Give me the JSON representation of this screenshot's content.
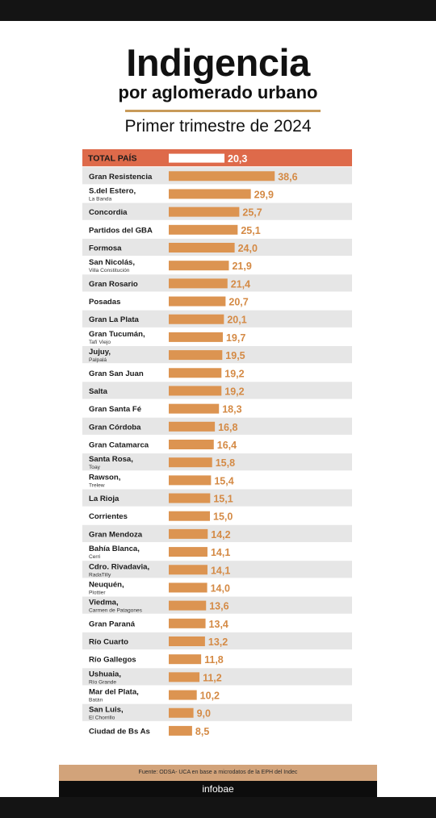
{
  "header": {
    "title": "Indigencia",
    "subtitle": "por aglomerado urbano",
    "period": "Primer trimestre de 2024"
  },
  "footer": {
    "source": "Fuente: ODSA- UCA en base a microdatos de la EPH del Indec",
    "brand": "infobae"
  },
  "colors": {
    "bar": "#dc9451",
    "value_text": "#d48a45",
    "total_row": "#de6a4a",
    "row_stripe": "#e6e6e6",
    "total_bar": "#ffffff"
  },
  "chart_data": {
    "type": "bar",
    "orientation": "horizontal",
    "title": "Indigencia",
    "subtitle": "por aglomerado urbano",
    "period": "Primer trimestre de 2024",
    "xlim": [
      0,
      50
    ],
    "items": [
      {
        "name": "TOTAL PAÍS",
        "value": 20.3,
        "label": "20,3",
        "highlight": true
      },
      {
        "name": "Gran Resistencia",
        "value": 38.6,
        "label": "38,6"
      },
      {
        "name": "S.del Estero,",
        "sub": "La Banda",
        "value": 29.9,
        "label": "29,9"
      },
      {
        "name": "Concordia",
        "value": 25.7,
        "label": "25,7"
      },
      {
        "name": "Partidos del GBA",
        "value": 25.1,
        "label": "25,1"
      },
      {
        "name": "Formosa",
        "value": 24.0,
        "label": "24,0"
      },
      {
        "name": "San Nicolás,",
        "sub": "Villa Constitución",
        "value": 21.9,
        "label": "21,9"
      },
      {
        "name": "Gran Rosario",
        "value": 21.4,
        "label": "21,4"
      },
      {
        "name": "Posadas",
        "value": 20.7,
        "label": "20,7"
      },
      {
        "name": "Gran La Plata",
        "value": 20.1,
        "label": "20,1"
      },
      {
        "name": "Gran Tucumán,",
        "sub": "Tafí Viejo",
        "value": 19.7,
        "label": "19,7"
      },
      {
        "name": "Jujuy,",
        "sub": "Palpalá",
        "value": 19.5,
        "label": "19,5"
      },
      {
        "name": "Gran San Juan",
        "value": 19.2,
        "label": "19,2"
      },
      {
        "name": "Salta",
        "value": 19.2,
        "label": "19,2"
      },
      {
        "name": "Gran Santa Fé",
        "value": 18.3,
        "label": "18,3"
      },
      {
        "name": "Gran Córdoba",
        "value": 16.8,
        "label": "16,8"
      },
      {
        "name": "Gran Catamarca",
        "value": 16.4,
        "label": "16,4"
      },
      {
        "name": "Santa Rosa,",
        "sub": "Toay",
        "value": 15.8,
        "label": "15,8"
      },
      {
        "name": "Rawson,",
        "sub": "Trelew",
        "value": 15.4,
        "label": "15,4"
      },
      {
        "name": "La Rioja",
        "value": 15.1,
        "label": "15,1"
      },
      {
        "name": "Corrientes",
        "value": 15.0,
        "label": "15,0"
      },
      {
        "name": "Gran Mendoza",
        "value": 14.2,
        "label": "14,2"
      },
      {
        "name": "Bahía Blanca,",
        "sub": "Cerri",
        "value": 14.1,
        "label": "14,1"
      },
      {
        "name": "Cdro. Rivadavia,",
        "sub": "RadaTilly",
        "value": 14.1,
        "label": "14,1"
      },
      {
        "name": "Neuquén,",
        "sub": "Plottier",
        "value": 14.0,
        "label": "14,0"
      },
      {
        "name": "Viedma,",
        "sub": "Carmen de Patagones",
        "value": 13.6,
        "label": "13,6"
      },
      {
        "name": "Gran Paraná",
        "value": 13.4,
        "label": "13,4"
      },
      {
        "name": "Río Cuarto",
        "value": 13.2,
        "label": "13,2"
      },
      {
        "name": "Río Gallegos",
        "value": 11.8,
        "label": "11,8"
      },
      {
        "name": "Ushuaia,",
        "sub": "Río Grande",
        "value": 11.2,
        "label": "11,2"
      },
      {
        "name": "Mar del Plata,",
        "sub": "Batán",
        "value": 10.2,
        "label": "10,2"
      },
      {
        "name": "San Luis,",
        "sub": "El Chorrillo",
        "value": 9.0,
        "label": "9,0"
      },
      {
        "name": "Ciudad de Bs As",
        "value": 8.5,
        "label": "8,5"
      }
    ]
  }
}
